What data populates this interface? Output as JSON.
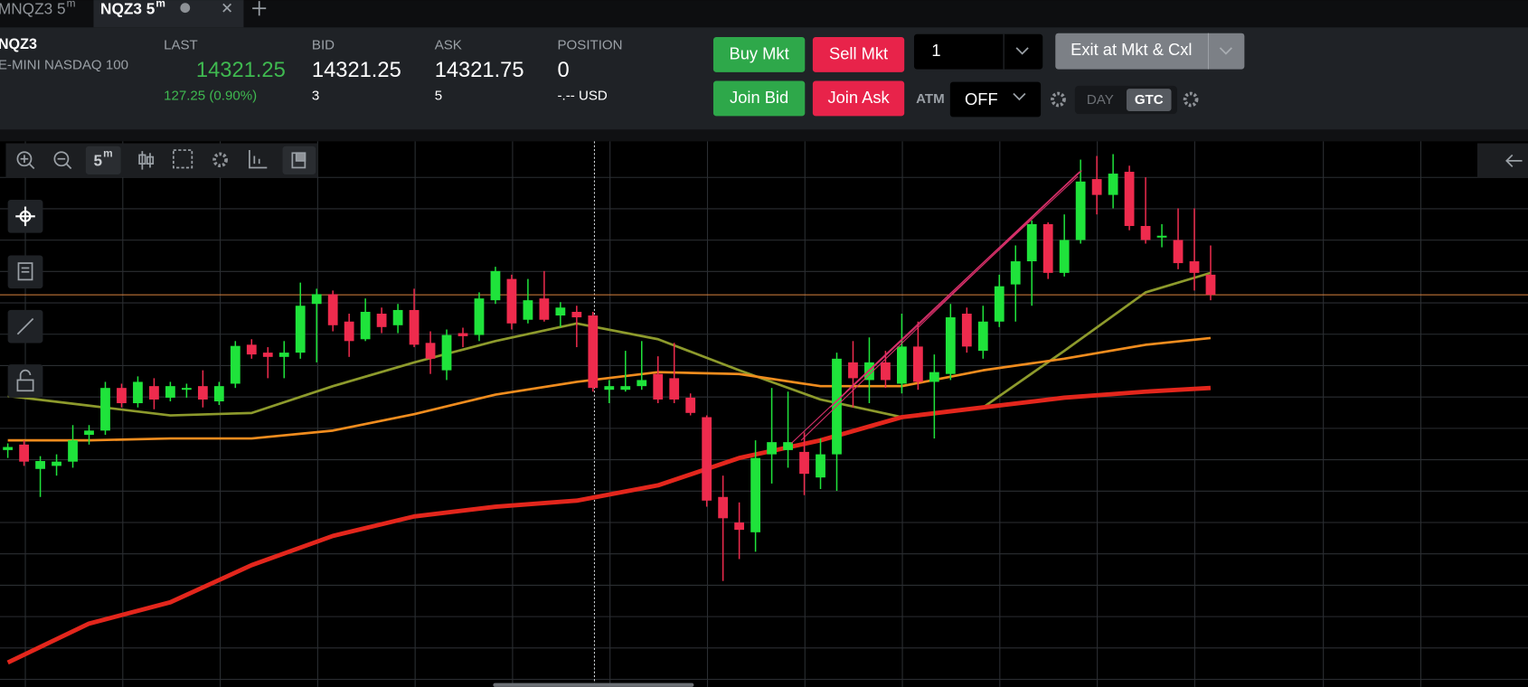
{
  "tabs": [
    {
      "label": "MNQZ3 5",
      "sup": "m"
    },
    {
      "label": "NQZ3 5",
      "sup": "m"
    }
  ],
  "quote": {
    "symbol": "NQZ3",
    "name": "E-MINI NASDAQ 100",
    "last": {
      "label": "LAST",
      "value": "14321.25",
      "change": "127.25 (0.90%)"
    },
    "bid": {
      "label": "BID",
      "value": "14321.25",
      "size": "3"
    },
    "ask": {
      "label": "ASK",
      "value": "14321.75",
      "size": "5"
    },
    "position": {
      "label": "POSITION",
      "value": "0",
      "pnl": "-.-- USD"
    }
  },
  "order_entry": {
    "buy_market": "Buy Mkt",
    "sell_market": "Sell Mkt",
    "join_bid": "Join Bid",
    "join_ask": "Join Ask",
    "quantity": "1",
    "exit": "Exit at Mkt & Cxl",
    "atm_label": "ATM",
    "atm_value": "OFF",
    "tif": [
      "DAY",
      "GTC"
    ],
    "selected_tif": 1
  },
  "toolbar": {
    "interval": "5",
    "unit": "m"
  },
  "chart_data": {
    "type": "candlestick",
    "open": [
      14257.5,
      14259.75,
      14249.75,
      14251,
      14252.75,
      14263.75,
      14265.5,
      14283,
      14276.75,
      14283.75,
      14279,
      14282.25,
      14283.75,
      14277.5,
      14284.75,
      14300.75,
      14297.5,
      14295.75,
      14297.5,
      14317.5,
      14321.5,
      14310.25,
      14303,
      14313.5,
      14308.75,
      14315,
      14301.5,
      14290.25,
      14305.5,
      14304.75,
      14319,
      14327.75,
      14311,
      14319.75,
      14312.75,
      14314.25,
      14312.75,
      14282.25,
      14282.25,
      14283.75,
      14288.75,
      14287,
      14279,
      14271,
      14238.25,
      14227.75,
      14223.75,
      14255.75,
      14257.5,
      14256.75,
      14246.25,
      14255.75,
      14293.5,
      14286.25,
      14293.5,
      14284.75,
      14300,
      14285.5,
      14288.75,
      14313.5,
      14298.25,
      14310.25,
      14325.5,
      14335,
      14350.25,
      14330.25,
      14343.75,
      14368.75,
      14362.25,
      14371.75,
      14349.5,
      14344.75,
      14343.75,
      14335,
      14329.5
    ],
    "high": [
      14260.25,
      14261.5,
      14255,
      14255.75,
      14267.75,
      14267.75,
      14285.5,
      14284.75,
      14287.75,
      14287,
      14285.5,
      14284.75,
      14290.25,
      14285.5,
      14302.25,
      14303,
      14299.75,
      14302.25,
      14326.25,
      14323.75,
      14323,
      14313.5,
      14319.75,
      14316,
      14317.5,
      14323.75,
      14306.25,
      14307,
      14307.75,
      14322.25,
      14332.75,
      14329.5,
      14327.75,
      14331,
      14318.25,
      14316.75,
      14314.25,
      14286.25,
      14298.25,
      14302.25,
      14296,
      14301.5,
      14280.75,
      14271.75,
      14247,
      14236,
      14261.5,
      14283,
      14281.5,
      14264.75,
      14262.25,
      14297.5,
      14302.25,
      14303.75,
      14298.25,
      14313.5,
      14310.25,
      14296.75,
      14317.5,
      14316,
      14316.75,
      14329.5,
      14341.5,
      14351.75,
      14351,
      14354.25,
      14376.75,
      14378.25,
      14379,
      14374.25,
      14369.5,
      14350.25,
      14356.75,
      14356.75,
      14341.5
    ],
    "low": [
      14254.25,
      14251,
      14238.25,
      14247,
      14250.25,
      14259.75,
      14263.75,
      14275,
      14275,
      14274.25,
      14277.5,
      14279,
      14275,
      14276,
      14283,
      14295,
      14287,
      14287,
      14295,
      14293.5,
      14306.25,
      14295.75,
      14302.25,
      14305.5,
      14305.5,
      14299.75,
      14288.75,
      14286.25,
      14299.75,
      14302.25,
      14317.5,
      14307,
      14309.5,
      14310.25,
      14308,
      14299.75,
      14281.5,
      14276.75,
      14281.5,
      14282.25,
      14276.75,
      14276.75,
      14271.75,
      14234.25,
      14203.75,
      14212.75,
      14215.75,
      14243.75,
      14250.25,
      14239,
      14241.5,
      14240.75,
      14275,
      14276.75,
      14283,
      14280.75,
      14282.25,
      14262.25,
      14286.25,
      14297.5,
      14295,
      14308,
      14310.25,
      14316.75,
      14327.75,
      14328.75,
      14342.25,
      14354.25,
      14356.75,
      14347.75,
      14342.25,
      14340.75,
      14331.75,
      14323,
      14319
    ],
    "close": [
      14258.75,
      14252.75,
      14253,
      14252.75,
      14261.5,
      14265.5,
      14283,
      14276.75,
      14285.5,
      14278.25,
      14283.75,
      14283,
      14278.25,
      14283.75,
      14300.25,
      14296.75,
      14295.75,
      14297.5,
      14316.75,
      14321.5,
      14308.75,
      14302.25,
      14314.25,
      14308,
      14315,
      14300.75,
      14295,
      14304.75,
      14304.25,
      14319.75,
      14331,
      14309.5,
      14319,
      14311,
      14316,
      14312,
      14283,
      14283.75,
      14283.75,
      14286.25,
      14278.25,
      14278.25,
      14272.75,
      14236.75,
      14229.5,
      14224.75,
      14254.25,
      14260.75,
      14260.75,
      14247.75,
      14255.75,
      14295,
      14287,
      14293.5,
      14286.25,
      14300,
      14285.5,
      14289.5,
      14312,
      14300,
      14310.25,
      14324.75,
      14335,
      14350.25,
      14330.25,
      14343.75,
      14367.75,
      14362.25,
      14371,
      14349.5,
      14343.75,
      14345.5,
      14334.25,
      14330.25,
      14321.25
    ],
    "up_color": "#1fe33b",
    "down_color": "#ee2b4d",
    "ylim": [
      14162.25,
      14384.25
    ],
    "series": [
      {
        "color": "#8d9a2c",
        "x": [
          0,
          5,
          10,
          15,
          20,
          25,
          30,
          35,
          40,
          45,
          50,
          55,
          60,
          65,
          70,
          74
        ],
        "values": [
          14279.75,
          14275.75,
          14271.75,
          14272.75,
          14283.75,
          14293.5,
          14302.25,
          14309.5,
          14303,
          14290.25,
          14278.25,
          14271,
          14275,
          14298.25,
          14322.25,
          14330.25
        ]
      },
      {
        "color": "#f08c1e",
        "x": [
          0,
          5,
          10,
          15,
          20,
          25,
          30,
          35,
          40,
          45,
          50,
          55,
          60,
          65,
          70,
          74
        ],
        "values": [
          14261.5,
          14261.5,
          14262.25,
          14262.25,
          14265.5,
          14272.25,
          14280.25,
          14285.5,
          14289.5,
          14288.75,
          14283.75,
          14283.75,
          14290.25,
          14295,
          14300.75,
          14303.5
        ]
      },
      {
        "color": "#e3261c",
        "x": [
          0,
          5,
          10,
          15,
          20,
          25,
          30,
          35,
          40,
          45,
          50,
          55,
          60,
          65,
          70,
          74
        ],
        "values": [
          14170.25,
          14186.25,
          14195,
          14210.25,
          14222.25,
          14230.25,
          14234.25,
          14236.75,
          14243,
          14254.25,
          14261.5,
          14271,
          14275,
          14279,
          14281.5,
          14283
        ]
      }
    ],
    "price_line_color": "#d9823e"
  }
}
